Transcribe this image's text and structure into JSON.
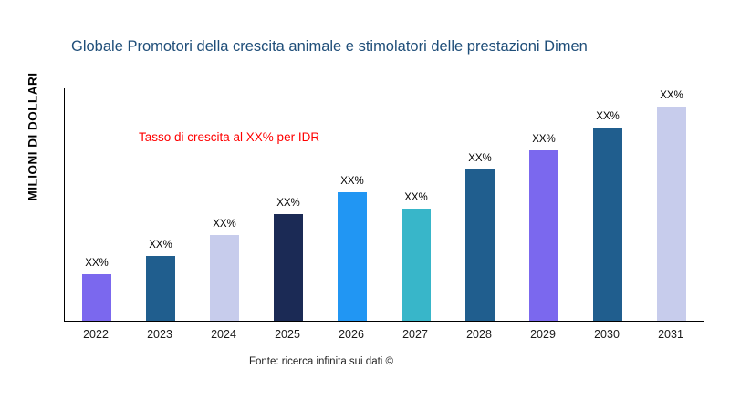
{
  "title": "Globale Promotori della crescita animale e stimolatori delle prestazioni Dimen",
  "growth_note": "Tasso di crescita al XX% per IDR",
  "source": "Fonte: ricerca infinita sui dati ©",
  "colors": {
    "title": "#1f4e79",
    "annotation": "#ff0000",
    "axis": "#000000"
  },
  "chart_data": {
    "type": "bar",
    "title": "Globale Promotori della crescita animale e stimolatori delle prestazioni Dimen",
    "xlabel": "",
    "ylabel": "MILIONI DI DOLLARI",
    "categories": [
      "2022",
      "2023",
      "2024",
      "2025",
      "2026",
      "2027",
      "2028",
      "2029",
      "2030",
      "2031"
    ],
    "values": [
      50,
      70,
      92,
      115,
      138,
      121,
      163,
      183,
      208,
      230
    ],
    "bar_labels": [
      "XX%",
      "XX%",
      "XX%",
      "XX%",
      "XX%",
      "XX%",
      "XX%",
      "XX%",
      "XX%",
      "XX%"
    ],
    "bar_colors": [
      "#7b68ee",
      "#205e8e",
      "#c7ccec",
      "#1b2a55",
      "#2196f3",
      "#38b6c9",
      "#205e8e",
      "#7b68ee",
      "#205e8e",
      "#c7ccec"
    ],
    "ylim": [
      0,
      250
    ],
    "grid": false,
    "legend": "none",
    "annotation": "Tasso di crescita al XX% per IDR"
  }
}
